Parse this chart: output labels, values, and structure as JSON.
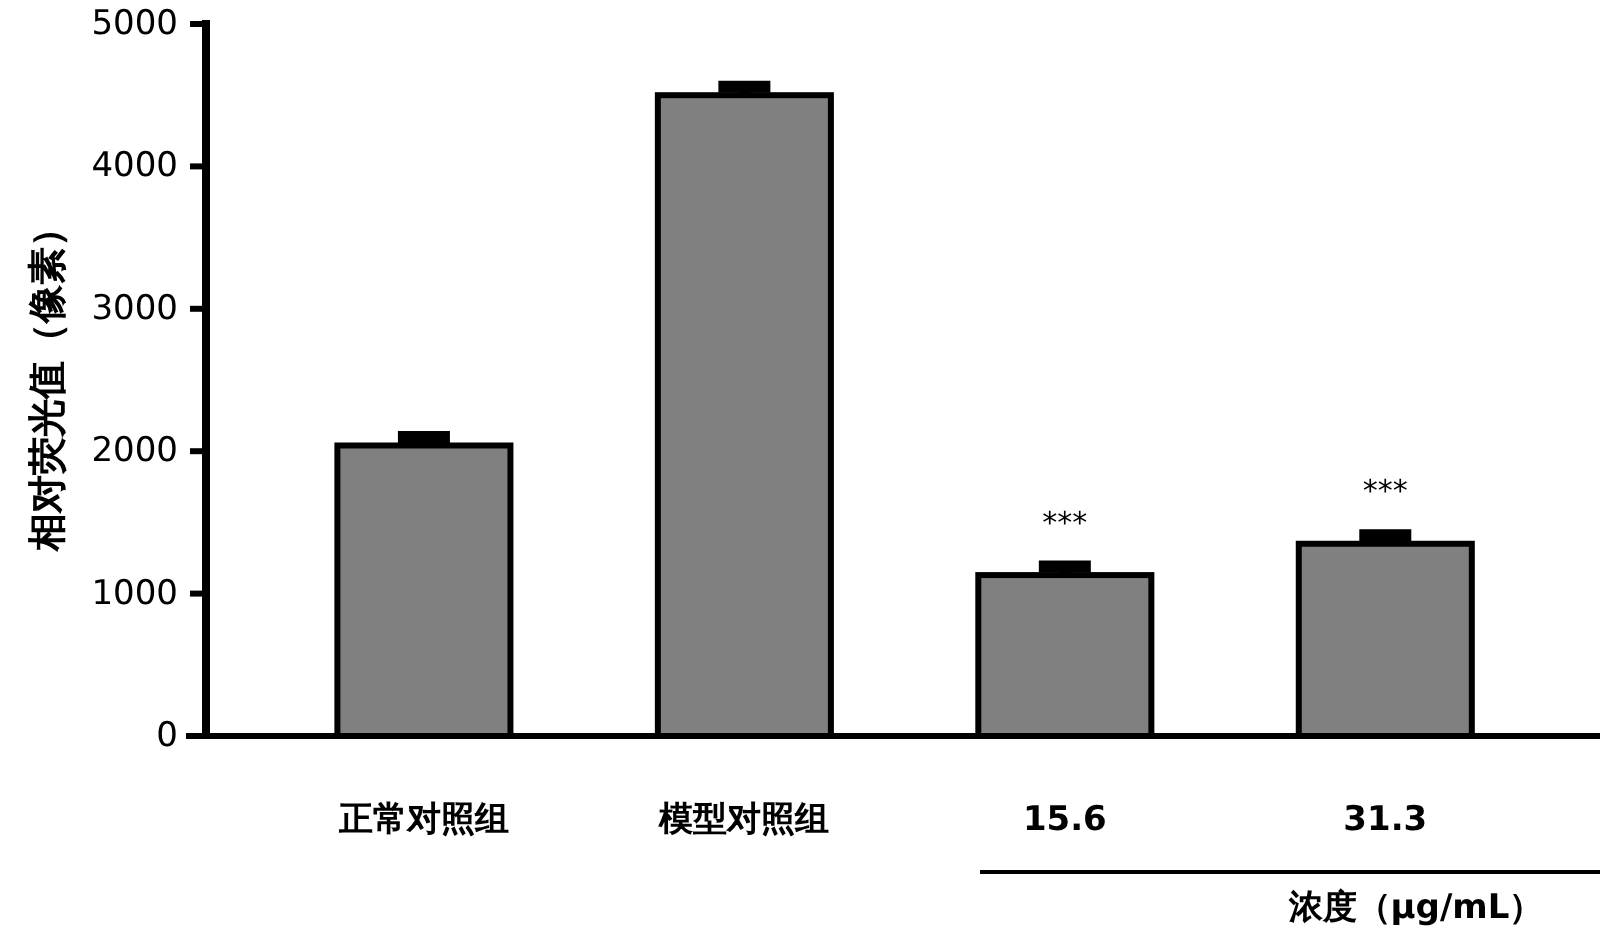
{
  "chart_data": {
    "type": "bar",
    "ylabel": "相对荧光值（像素）",
    "categories": [
      "正常对照组",
      "模型对照组",
      "15.6",
      "31.3"
    ],
    "values": [
      2040,
      4500,
      1130,
      1350
    ],
    "errors": [
      [
        2040,
        2100
      ],
      [
        4500,
        4560
      ],
      [
        1130,
        1190
      ],
      [
        1350,
        1410
      ]
    ],
    "color": "#808080",
    "ylim": [
      0,
      5000
    ],
    "yticks": [
      0,
      1000,
      2000,
      3000,
      4000,
      5000
    ],
    "grid": false,
    "annotations": [
      "***",
      "***",
      "浓度（μg/mL）"
    ]
  }
}
